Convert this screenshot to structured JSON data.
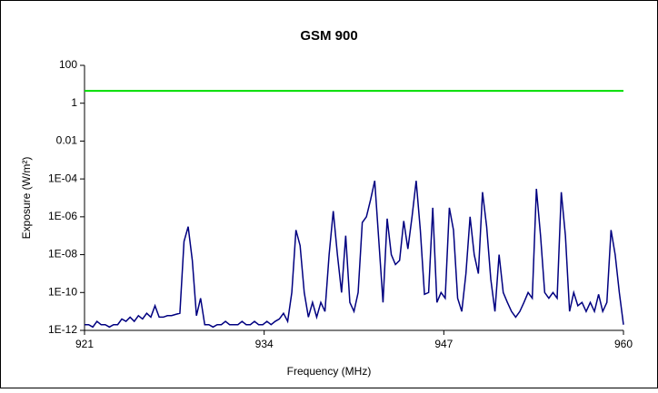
{
  "chart_data": {
    "type": "line",
    "title": "GSM 900",
    "x_label": "Frequency (MHz)",
    "y_label": "Exposure (W/m²)",
    "log_y": true,
    "xlim": [
      921,
      960
    ],
    "xticks": [
      921,
      934,
      947,
      960
    ],
    "ylim": [
      1e-12,
      100
    ],
    "yticks": [
      100,
      1,
      0.01,
      {
        "value": 0.0001,
        "label": "1E-04"
      },
      {
        "value": 1e-06,
        "label": "1E-06"
      },
      {
        "value": 1e-08,
        "label": "1E-08"
      },
      {
        "value": 1e-10,
        "label": "1E-10"
      },
      {
        "value": 1e-12,
        "label": "1E-12"
      }
    ],
    "x": [
      921,
      921.3,
      921.6,
      921.9,
      922.2,
      922.5,
      922.8,
      923.1,
      923.4,
      923.7,
      924,
      924.3,
      924.6,
      924.9,
      925.2,
      925.5,
      925.8,
      926.1,
      926.4,
      926.7,
      927,
      927.3,
      927.6,
      927.9,
      928.2,
      928.5,
      928.8,
      929.1,
      929.4,
      929.7,
      930,
      930.3,
      930.6,
      930.9,
      931.2,
      931.5,
      931.8,
      932.1,
      932.4,
      932.7,
      933,
      933.3,
      933.6,
      933.9,
      934.2,
      934.5,
      934.8,
      935.1,
      935.4,
      935.7,
      936,
      936.3,
      936.6,
      936.9,
      937.2,
      937.5,
      937.8,
      938.1,
      938.4,
      938.7,
      939,
      939.3,
      939.6,
      939.9,
      940.2,
      940.5,
      940.8,
      941.1,
      941.4,
      941.7,
      942,
      942.3,
      942.6,
      942.9,
      943.2,
      943.5,
      943.8,
      944.1,
      944.4,
      944.7,
      945,
      945.3,
      945.6,
      945.9,
      946.2,
      946.5,
      946.8,
      947.1,
      947.4,
      947.7,
      948,
      948.3,
      948.6,
      948.9,
      949.2,
      949.5,
      949.8,
      950.1,
      950.4,
      950.7,
      951,
      951.3,
      951.6,
      951.9,
      952.2,
      952.5,
      952.8,
      953.1,
      953.4,
      953.7,
      954,
      954.3,
      954.6,
      954.9,
      955.2,
      955.5,
      955.8,
      956.1,
      956.4,
      956.7,
      957,
      957.3,
      957.6,
      957.9,
      958.2,
      958.5,
      958.8,
      959.1,
      959.4,
      959.7,
      960
    ],
    "series": [
      {
        "color": "#000080",
        "values": [
          2e-12,
          2e-12,
          1.5e-12,
          3e-12,
          2e-12,
          2e-12,
          1.5e-12,
          2e-12,
          2e-12,
          4e-12,
          3e-12,
          5e-12,
          3e-12,
          6e-12,
          4e-12,
          8e-12,
          5e-12,
          2e-11,
          5e-12,
          5e-12,
          6e-12,
          6e-12,
          7e-12,
          8e-12,
          5e-08,
          3e-07,
          5e-09,
          6e-12,
          5e-11,
          2e-12,
          2e-12,
          1.5e-12,
          2e-12,
          2e-12,
          3e-12,
          2e-12,
          2e-12,
          2e-12,
          3e-12,
          2e-12,
          2e-12,
          3e-12,
          2e-12,
          2e-12,
          3e-12,
          2e-12,
          3e-12,
          4e-12,
          8e-12,
          3e-12,
          1e-10,
          2e-07,
          3e-08,
          1e-10,
          5e-12,
          3e-11,
          5e-12,
          3e-11,
          1e-11,
          1e-08,
          2e-06,
          1e-08,
          1e-10,
          1e-07,
          3e-11,
          1e-11,
          1e-10,
          5e-07,
          1e-06,
          8e-06,
          8e-05,
          5e-08,
          3e-11,
          8e-07,
          1e-08,
          3e-09,
          5e-09,
          6e-07,
          2e-08,
          1e-06,
          8e-05,
          2e-07,
          8e-11,
          1e-10,
          3e-06,
          3e-11,
          1e-10,
          5e-11,
          3e-06,
          2e-07,
          5e-11,
          1e-11,
          1e-09,
          1e-06,
          1e-08,
          1e-09,
          2e-05,
          3e-07,
          5e-10,
          1e-11,
          1e-08,
          1e-10,
          3e-11,
          1e-11,
          5e-12,
          1e-11,
          3e-11,
          1e-10,
          5e-11,
          3e-05,
          1e-07,
          1e-10,
          5e-11,
          1e-10,
          5e-11,
          2e-05,
          1e-07,
          1e-11,
          1e-10,
          2e-11,
          3e-11,
          1e-11,
          3e-11,
          1e-11,
          8e-11,
          1e-11,
          3e-11,
          2e-07,
          1e-08,
          1e-10,
          2e-12
        ]
      },
      {
        "color": "#00dd00",
        "x": [
          921,
          960
        ],
        "values": [
          4.5,
          4.5
        ]
      }
    ]
  }
}
